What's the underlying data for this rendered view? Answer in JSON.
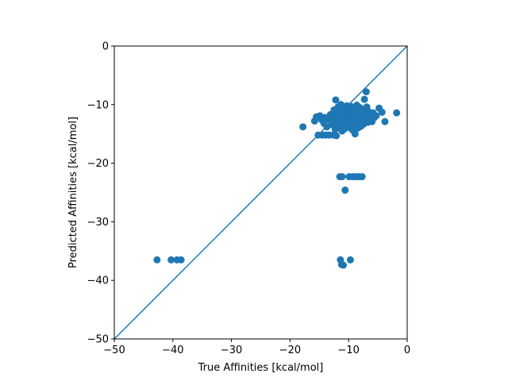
{
  "chart_data": {
    "type": "scatter",
    "title": "",
    "xlabel": "True Affinities [kcal/mol]",
    "ylabel": "Predicted Affinities [kcal/mol]",
    "xlim": [
      -50,
      0
    ],
    "ylim": [
      -50,
      0
    ],
    "xticks": [
      -50,
      -40,
      -30,
      -20,
      -10,
      0
    ],
    "yticks": [
      -50,
      -40,
      -30,
      -20,
      -10,
      0
    ],
    "xtick_labels": [
      "−50",
      "−40",
      "−30",
      "−20",
      "−10",
      "0"
    ],
    "ytick_labels": [
      "−50",
      "−40",
      "−30",
      "−20",
      "−10",
      "0"
    ],
    "grid": false,
    "colors": {
      "series": "#1f77b4",
      "axes": "#000000",
      "background": "#ffffff"
    },
    "reference_line": {
      "x": [
        -50,
        0
      ],
      "y": [
        -50,
        0
      ]
    },
    "points": [
      {
        "x": -42.7,
        "y": -36.5
      },
      {
        "x": -40.3,
        "y": -36.5
      },
      {
        "x": -39.3,
        "y": -36.5
      },
      {
        "x": -38.6,
        "y": -36.5
      },
      {
        "x": -17.8,
        "y": -13.8
      },
      {
        "x": -15.8,
        "y": -12.8
      },
      {
        "x": -15.5,
        "y": -12.1
      },
      {
        "x": -15.2,
        "y": -15.2
      },
      {
        "x": -14.9,
        "y": -11.9
      },
      {
        "x": -14.6,
        "y": -12.6
      },
      {
        "x": -14.5,
        "y": -15.2
      },
      {
        "x": -14.2,
        "y": -13.2
      },
      {
        "x": -14.0,
        "y": -12.2
      },
      {
        "x": -13.9,
        "y": -15.2
      },
      {
        "x": -13.7,
        "y": -13.8
      },
      {
        "x": -13.5,
        "y": -12.5
      },
      {
        "x": -13.3,
        "y": -15.2
      },
      {
        "x": -13.1,
        "y": -11.7
      },
      {
        "x": -12.9,
        "y": -13.4
      },
      {
        "x": -12.7,
        "y": -12.0
      },
      {
        "x": -12.6,
        "y": -15.2
      },
      {
        "x": -12.5,
        "y": -10.9
      },
      {
        "x": -12.4,
        "y": -12.8
      },
      {
        "x": -12.3,
        "y": -14.2
      },
      {
        "x": -12.2,
        "y": -9.2
      },
      {
        "x": -12.1,
        "y": -15.3
      },
      {
        "x": -12.0,
        "y": -11.6
      },
      {
        "x": -11.9,
        "y": -13.6
      },
      {
        "x": -11.8,
        "y": -10.4
      },
      {
        "x": -11.7,
        "y": -12.4
      },
      {
        "x": -11.6,
        "y": -14.0
      },
      {
        "x": -11.5,
        "y": -11.0
      },
      {
        "x": -11.4,
        "y": -13.0
      },
      {
        "x": -11.3,
        "y": -10.0
      },
      {
        "x": -11.2,
        "y": -12.2
      },
      {
        "x": -11.1,
        "y": -14.5
      },
      {
        "x": -11.0,
        "y": -11.4
      },
      {
        "x": -10.9,
        "y": -13.3
      },
      {
        "x": -10.8,
        "y": -10.6
      },
      {
        "x": -10.7,
        "y": -12.6
      },
      {
        "x": -10.6,
        "y": -14.1
      },
      {
        "x": -10.5,
        "y": -11.1
      },
      {
        "x": -10.4,
        "y": -13.0
      },
      {
        "x": -10.3,
        "y": -10.2
      },
      {
        "x": -10.2,
        "y": -12.0
      },
      {
        "x": -10.1,
        "y": -13.6
      },
      {
        "x": -10.0,
        "y": -10.9
      },
      {
        "x": -9.9,
        "y": -12.7
      },
      {
        "x": -9.8,
        "y": -11.5
      },
      {
        "x": -9.7,
        "y": -13.9
      },
      {
        "x": -9.6,
        "y": -10.3
      },
      {
        "x": -9.5,
        "y": -12.3
      },
      {
        "x": -9.4,
        "y": -14.3
      },
      {
        "x": -9.3,
        "y": -11.2
      },
      {
        "x": -9.2,
        "y": -13.1
      },
      {
        "x": -9.1,
        "y": -10.7
      },
      {
        "x": -9.0,
        "y": -12.5
      },
      {
        "x": -8.9,
        "y": -15.0
      },
      {
        "x": -8.8,
        "y": -11.8
      },
      {
        "x": -8.7,
        "y": -13.4
      },
      {
        "x": -8.6,
        "y": -10.1
      },
      {
        "x": -8.5,
        "y": -12.1
      },
      {
        "x": -8.4,
        "y": -14.0
      },
      {
        "x": -8.3,
        "y": -11.3
      },
      {
        "x": -8.2,
        "y": -12.9
      },
      {
        "x": -8.1,
        "y": -10.5
      },
      {
        "x": -8.0,
        "y": -12.4
      },
      {
        "x": -7.9,
        "y": -13.7
      },
      {
        "x": -7.8,
        "y": -11.0
      },
      {
        "x": -7.7,
        "y": -12.7
      },
      {
        "x": -7.6,
        "y": -10.8
      },
      {
        "x": -7.5,
        "y": -12.2
      },
      {
        "x": -7.4,
        "y": -13.3
      },
      {
        "x": -7.3,
        "y": -9.1
      },
      {
        "x": -7.2,
        "y": -11.6
      },
      {
        "x": -7.1,
        "y": -12.8
      },
      {
        "x": -7.0,
        "y": -7.8
      },
      {
        "x": -6.9,
        "y": -10.4
      },
      {
        "x": -6.8,
        "y": -11.9
      },
      {
        "x": -6.7,
        "y": -13.0
      },
      {
        "x": -6.6,
        "y": -11.2
      },
      {
        "x": -6.4,
        "y": -12.4
      },
      {
        "x": -6.2,
        "y": -11.7
      },
      {
        "x": -6.0,
        "y": -12.9
      },
      {
        "x": -5.8,
        "y": -11.4
      },
      {
        "x": -5.6,
        "y": -12.2
      },
      {
        "x": -5.3,
        "y": -11.9
      },
      {
        "x": -4.8,
        "y": -10.6
      },
      {
        "x": -4.3,
        "y": -11.3
      },
      {
        "x": -3.8,
        "y": -12.9
      },
      {
        "x": -1.8,
        "y": -11.4
      },
      {
        "x": -11.5,
        "y": -22.3
      },
      {
        "x": -11.1,
        "y": -22.3
      },
      {
        "x": -10.6,
        "y": -24.6
      },
      {
        "x": -9.9,
        "y": -22.3
      },
      {
        "x": -9.3,
        "y": -22.3
      },
      {
        "x": -8.7,
        "y": -22.3
      },
      {
        "x": -8.2,
        "y": -22.3
      },
      {
        "x": -7.7,
        "y": -22.3
      },
      {
        "x": -11.4,
        "y": -36.5
      },
      {
        "x": -11.2,
        "y": -37.3
      },
      {
        "x": -10.9,
        "y": -37.4
      },
      {
        "x": -9.7,
        "y": -36.5
      }
    ]
  }
}
